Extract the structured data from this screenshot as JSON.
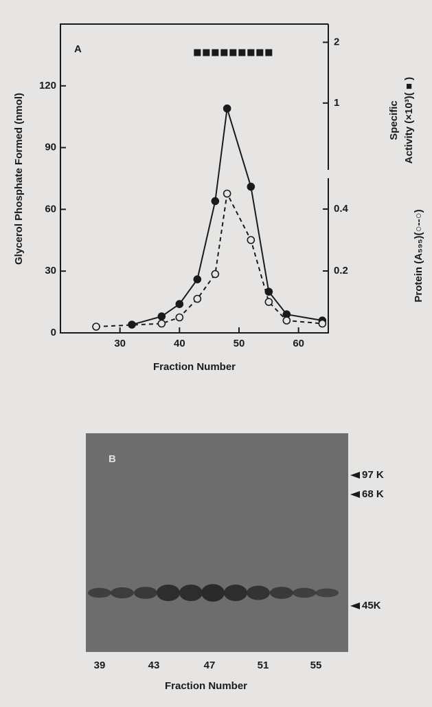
{
  "chart_data": {
    "type": "line",
    "panel_label": "A",
    "xlabel": "Fraction Number",
    "ylabel": "Glycerol Phosphate Formed (nmol)",
    "y2label": "Protein (A₅₉₅)(○--○)",
    "y3label": [
      "Specific",
      "Activity (×10³)( ■ )"
    ],
    "xlim": [
      20,
      65
    ],
    "xticks": [
      30,
      40,
      50,
      60
    ],
    "ylim": [
      0,
      150
    ],
    "yticks": [
      0,
      30,
      60,
      90,
      120
    ],
    "y2lim": [
      0,
      0.5
    ],
    "y2ticks": [
      0.2,
      0.4
    ],
    "y3lim": [
      -0.1,
      2.3
    ],
    "y3ticks": [
      1,
      2
    ],
    "series": [
      {
        "color": "#1a1a1a",
        "marker": "filled-circle",
        "dash": false,
        "x": [
          32,
          37,
          40,
          43,
          46,
          48,
          52,
          55,
          58,
          64
        ],
        "values": [
          4,
          8,
          14,
          26,
          64,
          109,
          71,
          20,
          9,
          6
        ]
      },
      {
        "color": "#1a1a1a",
        "marker": "open-circle",
        "dash": true,
        "axis": "y2",
        "x": [
          26,
          37,
          40,
          43,
          46,
          48,
          52,
          55,
          58,
          64
        ],
        "values": [
          0.02,
          0.03,
          0.05,
          0.11,
          0.19,
          0.45,
          0.3,
          0.1,
          0.04,
          0.03
        ]
      },
      {
        "color": "#1a1a1a",
        "marker": "square",
        "dash": null,
        "axis": "y3",
        "x": [
          43,
          44.5,
          46,
          47.5,
          49,
          50.5,
          52,
          53.5,
          55
        ],
        "values": [
          1.83,
          1.83,
          1.83,
          1.83,
          1.83,
          1.83,
          1.83,
          1.83,
          1.83
        ]
      }
    ]
  },
  "gel": {
    "panel_label": "B",
    "lane_labels": [
      "39",
      "43",
      "47",
      "51",
      "55"
    ],
    "markers": [
      "97 K",
      "68 K",
      "45K"
    ],
    "xlabel": "Fraction Number"
  }
}
